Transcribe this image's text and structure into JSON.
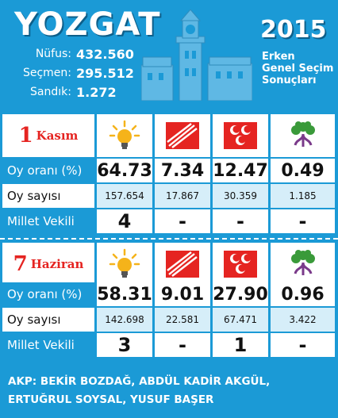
{
  "header": {
    "province": "YOZGAT",
    "stats": [
      {
        "label": "Nüfus:",
        "value": "432.560"
      },
      {
        "label": "Seçmen:",
        "value": "295.512"
      },
      {
        "label": "Sandık:",
        "value": "1.272"
      }
    ],
    "year": "2015",
    "subtitle": [
      "Erken",
      "Genel Seçim",
      "Sonuçları"
    ]
  },
  "colors": {
    "brand_blue": "#1b9ad6",
    "party_red": "#e52421",
    "akp_yellow": "#f5b31a",
    "hdp_green": "#3a9a3a",
    "hdp_purple": "#7a3a8a"
  },
  "parties": [
    "akp-bulb-icon",
    "chp-six-arrows-icon",
    "mhp-three-crescents-icon",
    "hdp-tree-icon"
  ],
  "elections": [
    {
      "day": "1",
      "month": "Kasım",
      "rows": [
        {
          "label": "Oy oranı (%)",
          "values": [
            "64.73",
            "7.34",
            "12.47",
            "0.49"
          ]
        },
        {
          "label": "Oy sayısı",
          "values": [
            "157.654",
            "17.867",
            "30.359",
            "1.185"
          ]
        },
        {
          "label": "Millet Vekili",
          "values": [
            "4",
            "-",
            "-",
            "-"
          ]
        }
      ]
    },
    {
      "day": "7",
      "month": "Haziran",
      "rows": [
        {
          "label": "Oy oranı (%)",
          "values": [
            "58.31",
            "9.01",
            "27.90",
            "0.96"
          ]
        },
        {
          "label": "Oy sayısı",
          "values": [
            "142.698",
            "22.581",
            "67.471",
            "3.422"
          ]
        },
        {
          "label": "Millet Vekili",
          "values": [
            "3",
            "-",
            "1",
            "-"
          ]
        }
      ]
    }
  ],
  "footer": {
    "line1": "AKP: BEKİR BOZDAĞ, ABDÜL KADİR AKGÜL,",
    "line2": "ERTUĞRUL SOYSAL, YUSUF BAŞER"
  }
}
